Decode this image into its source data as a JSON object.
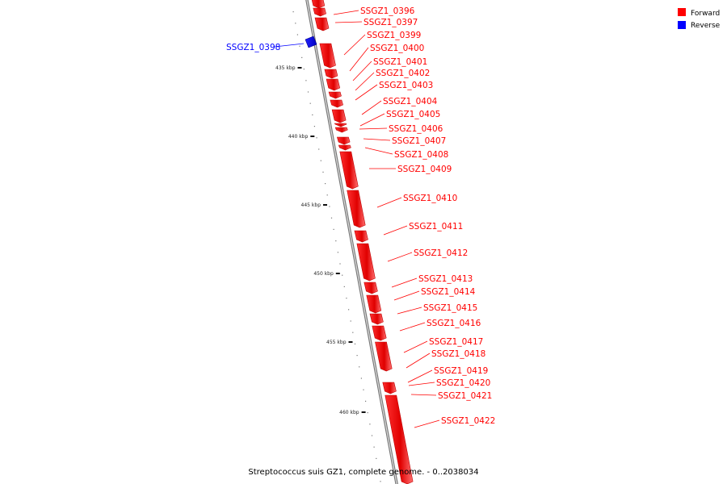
{
  "title": "Streptococcus suis GZ1, complete genome. - 0..2038034",
  "legend": [
    {
      "label": "Forward",
      "color": "#ff0000"
    },
    {
      "label": "Reverse",
      "color": "#0000ff"
    }
  ],
  "kbp_ticks": [
    "435 kbp",
    "440 kbp",
    "445 kbp",
    "450 kbp",
    "455 kbp",
    "460 kbp"
  ],
  "genes": [
    {
      "name": "SSGZ1_0396",
      "strand": "forward"
    },
    {
      "name": "SSGZ1_0397",
      "strand": "forward"
    },
    {
      "name": "SSGZ1_0398",
      "strand": "reverse"
    },
    {
      "name": "SSGZ1_0399",
      "strand": "forward"
    },
    {
      "name": "SSGZ1_0400",
      "strand": "forward"
    },
    {
      "name": "SSGZ1_0401",
      "strand": "forward"
    },
    {
      "name": "SSGZ1_0402",
      "strand": "forward"
    },
    {
      "name": "SSGZ1_0403",
      "strand": "forward"
    },
    {
      "name": "SSGZ1_0404",
      "strand": "forward"
    },
    {
      "name": "SSGZ1_0405",
      "strand": "forward"
    },
    {
      "name": "SSGZ1_0406",
      "strand": "forward"
    },
    {
      "name": "SSGZ1_0407",
      "strand": "forward"
    },
    {
      "name": "SSGZ1_0408",
      "strand": "forward"
    },
    {
      "name": "SSGZ1_0409",
      "strand": "forward"
    },
    {
      "name": "SSGZ1_0410",
      "strand": "forward"
    },
    {
      "name": "SSGZ1_0411",
      "strand": "forward"
    },
    {
      "name": "SSGZ1_0412",
      "strand": "forward"
    },
    {
      "name": "SSGZ1_0413",
      "strand": "forward"
    },
    {
      "name": "SSGZ1_0414",
      "strand": "forward"
    },
    {
      "name": "SSGZ1_0415",
      "strand": "forward"
    },
    {
      "name": "SSGZ1_0416",
      "strand": "forward"
    },
    {
      "name": "SSGZ1_0417",
      "strand": "forward"
    },
    {
      "name": "SSGZ1_0418",
      "strand": "forward"
    },
    {
      "name": "SSGZ1_0419",
      "strand": "forward"
    },
    {
      "name": "SSGZ1_0420",
      "strand": "forward"
    },
    {
      "name": "SSGZ1_0421",
      "strand": "forward"
    },
    {
      "name": "SSGZ1_0422",
      "strand": "forward"
    }
  ]
}
